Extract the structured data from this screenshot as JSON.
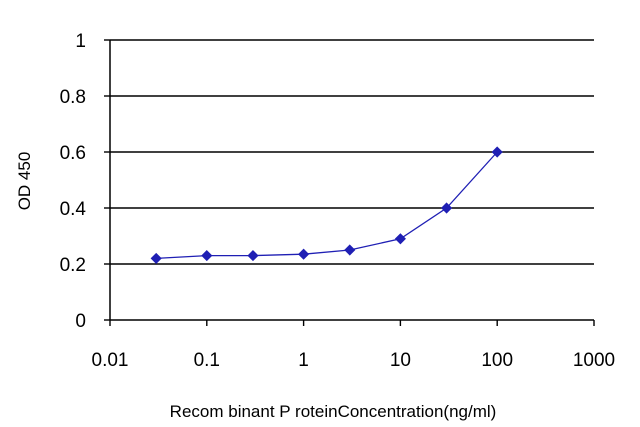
{
  "chart_data": {
    "type": "line",
    "title": "",
    "xlabel": "Recom binant P roteinConcentration(ng/ml)",
    "ylabel": "OD 450",
    "x_scale": "log",
    "xlim": [
      0.01,
      1000
    ],
    "ylim": [
      0,
      1
    ],
    "x_ticks": [
      0.01,
      0.1,
      1,
      10,
      100,
      1000
    ],
    "x_tick_labels": [
      "0.01",
      "0.1",
      "1",
      "10",
      "100",
      "1000"
    ],
    "y_ticks": [
      0,
      0.2,
      0.4,
      0.6,
      0.8,
      1
    ],
    "y_tick_labels": [
      "0",
      "0.2",
      "0.4",
      "0.6",
      "0.8",
      "1"
    ],
    "grid": "horizontal",
    "legend": "none",
    "series": [
      {
        "color": "#1f1fb4",
        "marker": "diamond",
        "x": [
          0.03,
          0.1,
          0.3,
          1,
          3,
          10,
          30,
          100
        ],
        "y": [
          0.22,
          0.23,
          0.23,
          0.235,
          0.25,
          0.29,
          0.4,
          0.6
        ]
      }
    ]
  }
}
